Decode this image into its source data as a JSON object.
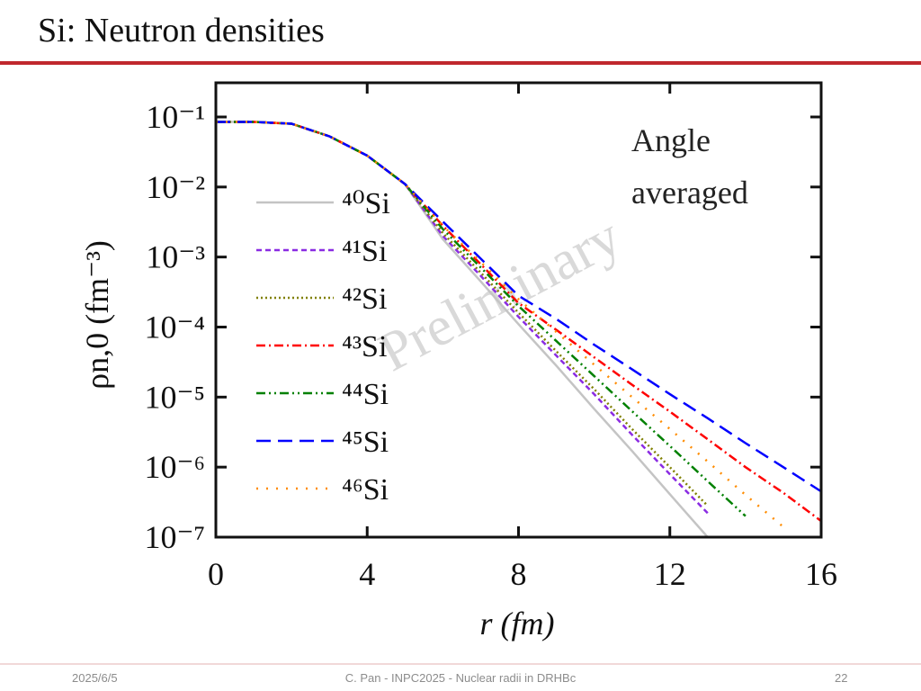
{
  "header": {
    "title": "Si: Neutron densities"
  },
  "footer": {
    "date": "2025/6/5",
    "center": "C. Pan - INPC2025 - Nuclear radii in DRHBc",
    "page": "22"
  },
  "chart_data": {
    "type": "line",
    "xlabel": "r (fm)",
    "ylabel": "ρn,0 (fm⁻³)",
    "annotations": [
      "Angle",
      "averaged"
    ],
    "watermark": "Preliminary",
    "ylog": true,
    "xlim": [
      0,
      16
    ],
    "xticks": [
      0,
      4,
      8,
      12,
      16
    ],
    "ylim": [
      1e-07,
      0.1
    ],
    "yticks": [
      {
        "value": 1e-07,
        "label": "10⁻⁷"
      },
      {
        "value": 1e-06,
        "label": "10⁻⁶"
      },
      {
        "value": 1e-05,
        "label": "10⁻⁵"
      },
      {
        "value": 0.0001,
        "label": "10⁻⁴"
      },
      {
        "value": 0.001,
        "label": "10⁻³"
      },
      {
        "value": 0.01,
        "label": "10⁻²"
      },
      {
        "value": 0.1,
        "label": "10⁻¹"
      }
    ],
    "legend": "left",
    "x": [
      0,
      1,
      2,
      3,
      4,
      5,
      6,
      7,
      8,
      9,
      10,
      11,
      12,
      13,
      14,
      15,
      16
    ],
    "series": [
      {
        "name": "⁴⁰Si",
        "color": "#c4c4c4",
        "dash": "solid",
        "values": [
          0.085,
          0.085,
          0.08,
          0.053,
          0.028,
          0.011,
          0.0018,
          0.00045,
          0.00011,
          2.8e-05,
          6.8e-06,
          1.7e-06,
          4.1e-07,
          1e-07,
          null,
          null,
          null
        ]
      },
      {
        "name": "⁴¹Si",
        "color": "#8a2be2",
        "dash": "dashed",
        "values": [
          0.085,
          0.085,
          0.08,
          0.053,
          0.028,
          0.011,
          0.002,
          0.00054,
          0.00014,
          3.9e-05,
          1.1e-05,
          2.9e-06,
          7.9e-07,
          2.2e-07,
          null,
          null,
          null
        ]
      },
      {
        "name": "⁴²Si",
        "color": "#808000",
        "dash": "dotted",
        "values": [
          0.085,
          0.085,
          0.08,
          0.053,
          0.028,
          0.011,
          0.0022,
          0.0006,
          0.00016,
          4.5e-05,
          1.3e-05,
          3.5e-06,
          1e-06,
          2.8e-07,
          null,
          null,
          null
        ]
      },
      {
        "name": "⁴³Si",
        "color": "#ff0000",
        "dash": "dashdot",
        "values": [
          0.085,
          0.085,
          0.08,
          0.053,
          0.028,
          0.011,
          0.0028,
          0.00079,
          0.00022,
          9.1e-05,
          3.7e-05,
          1.5e-05,
          6.2e-06,
          2.5e-06,
          1e-06,
          4.3e-07,
          1.7e-07
        ]
      },
      {
        "name": "⁴⁴Si",
        "color": "#008000",
        "dash": "dashdotdot",
        "values": [
          0.085,
          0.085,
          0.08,
          0.053,
          0.028,
          0.011,
          0.0025,
          0.00071,
          0.0002,
          6.3e-05,
          2e-05,
          6.3e-06,
          2e-06,
          6.3e-07,
          2e-07,
          null,
          null
        ]
      },
      {
        "name": "⁴⁵Si",
        "color": "#0000ff",
        "dash": "longdash",
        "values": [
          0.085,
          0.085,
          0.08,
          0.053,
          0.028,
          0.011,
          0.0032,
          0.00095,
          0.00028,
          0.00013,
          5.6e-05,
          2.5e-05,
          1.1e-05,
          5e-06,
          2.2e-06,
          1e-06,
          4.5e-07
        ]
      },
      {
        "name": "⁴⁶Si",
        "color": "#ff8c00",
        "dash": "sparsedot",
        "values": [
          0.085,
          0.085,
          0.08,
          0.053,
          0.028,
          0.011,
          0.0028,
          0.00085,
          0.00025,
          8.5e-05,
          2.9e-05,
          1e-05,
          3.5e-06,
          1.2e-06,
          4e-07,
          1.4e-07,
          null
        ]
      }
    ]
  }
}
